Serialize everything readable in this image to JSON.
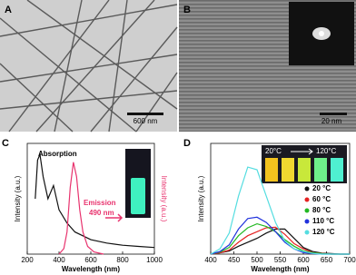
{
  "panels": {
    "A": {
      "label": "A",
      "scale_bar": "600 nm"
    },
    "B": {
      "label": "B",
      "scale_bar": "20 nm"
    }
  },
  "chart_data": [
    {
      "type": "line",
      "panel_label": "C",
      "x_label": "Wavelength (nm)",
      "y_label": "Intensity (a.u.)",
      "y2_label": "Intensity (a.u.)",
      "xlim": [
        200,
        1000
      ],
      "xticks": [
        200,
        400,
        600,
        800,
        1000
      ],
      "ylim": [
        0,
        1
      ],
      "y2lim": [
        0,
        1
      ],
      "annotation": "490 nm",
      "series": [
        {
          "name": "Absorption",
          "color": "#111111",
          "x": [
            250,
            265,
            280,
            300,
            330,
            365,
            400,
            450,
            500,
            600,
            700,
            800,
            900,
            1000
          ],
          "values": [
            0.5,
            0.85,
            0.9,
            0.7,
            0.5,
            0.62,
            0.4,
            0.28,
            0.2,
            0.13,
            0.1,
            0.08,
            0.07,
            0.06
          ]
        },
        {
          "name": "Emission",
          "color": "#e8336e",
          "axis": "y2",
          "x": [
            400,
            430,
            450,
            470,
            490,
            510,
            530,
            550,
            580,
            620,
            680
          ],
          "values": [
            0,
            0.05,
            0.2,
            0.6,
            0.83,
            0.7,
            0.4,
            0.2,
            0.07,
            0.02,
            0
          ]
        }
      ]
    },
    {
      "type": "line",
      "panel_label": "D",
      "x_label": "Wavelength (nm)",
      "y_label": "Intensity (a.u.)",
      "xlim": [
        400,
        700
      ],
      "xticks": [
        400,
        450,
        500,
        550,
        600,
        650,
        700
      ],
      "ylim": [
        0,
        4.2
      ],
      "inset_labels": [
        "20°C",
        "120°C"
      ],
      "x": [
        400,
        420,
        440,
        460,
        480,
        500,
        520,
        540,
        560,
        580,
        600,
        620,
        640,
        660,
        680,
        700
      ],
      "series": [
        {
          "name": "20 °C",
          "color": "#111111",
          "values": [
            0,
            0.05,
            0.12,
            0.3,
            0.45,
            0.6,
            0.8,
            0.95,
            0.95,
            0.6,
            0.25,
            0.1,
            0.04,
            0.02,
            0,
            0
          ]
        },
        {
          "name": "60 °C",
          "color": "#e52222",
          "values": [
            0,
            0.05,
            0.15,
            0.45,
            0.7,
            0.85,
            1.0,
            1.02,
            0.75,
            0.4,
            0.2,
            0.06,
            0.03,
            0,
            0,
            0
          ]
        },
        {
          "name": "80 °C",
          "color": "#22b822",
          "values": [
            0,
            0.08,
            0.25,
            0.7,
            1.0,
            1.15,
            1.05,
            0.85,
            0.55,
            0.3,
            0.12,
            0.05,
            0.02,
            0,
            0,
            0
          ]
        },
        {
          "name": "110 °C",
          "color": "#2233dd",
          "values": [
            0,
            0.1,
            0.35,
            0.95,
            1.35,
            1.4,
            1.2,
            0.85,
            0.45,
            0.2,
            0.06,
            0.02,
            0,
            0,
            0,
            0
          ]
        },
        {
          "name": "120 °C",
          "color": "#55dde0",
          "values": [
            0,
            0.2,
            0.8,
            2.2,
            3.3,
            3.2,
            2.2,
            1.2,
            0.5,
            0.2,
            0.1,
            0.03,
            0,
            0,
            0,
            0
          ]
        }
      ]
    }
  ]
}
